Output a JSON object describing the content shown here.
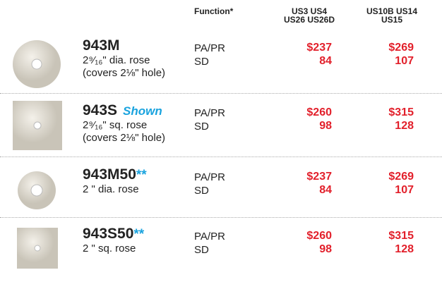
{
  "header": {
    "function": "Function*",
    "finish_1": [
      "US3  US4",
      "US26  US26D"
    ],
    "finish_2": [
      "US10B  US14",
      "US15"
    ]
  },
  "products": [
    {
      "model": "943M",
      "description": [
        "2⁹⁄₁₆\" dia. rose",
        "(covers 2⅛\" hole)"
      ],
      "functions": [
        "PA/PR",
        "SD"
      ],
      "prices_1": [
        "$237",
        "84"
      ],
      "prices_2": [
        "$269",
        "107"
      ]
    },
    {
      "model": "943S",
      "tag": "Shown",
      "description": [
        "2⁹⁄₁₆\" sq. rose",
        "(covers 2⅛\" hole)"
      ],
      "functions": [
        "PA/PR",
        "SD"
      ],
      "prices_1": [
        "$260",
        "98"
      ],
      "prices_2": [
        "$315",
        "128"
      ]
    },
    {
      "model": "943M50",
      "mark": "**",
      "description": [
        "2 \" dia. rose"
      ],
      "functions": [
        "PA/PR",
        "SD"
      ],
      "prices_1": [
        "$237",
        "84"
      ],
      "prices_2": [
        "$269",
        "107"
      ]
    },
    {
      "model": "943S50",
      "mark": "**",
      "description": [
        "2 \" sq. rose"
      ],
      "functions": [
        "PA/PR",
        "SD"
      ],
      "prices_1": [
        "$260",
        "98"
      ],
      "prices_2": [
        "$315",
        "128"
      ]
    }
  ]
}
